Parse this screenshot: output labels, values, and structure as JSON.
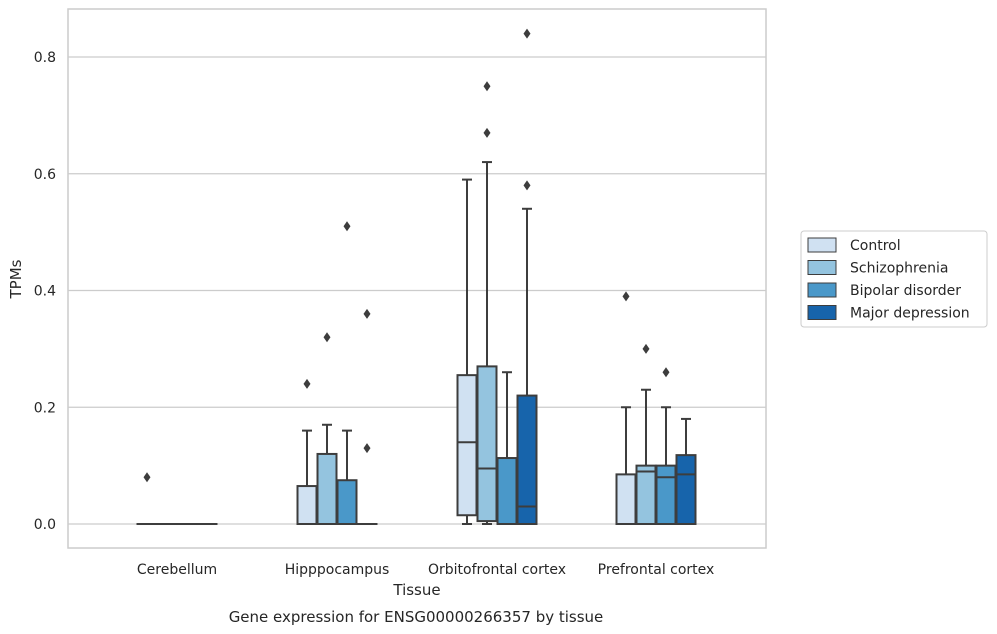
{
  "caption": "Gene expression for ENSG00000266357 by tissue",
  "chart_data": {
    "type": "box",
    "title": "",
    "xlabel": "Tissue",
    "ylabel": "TPMs",
    "ylim": [
      -0.04,
      0.885
    ],
    "yticks": [
      0.0,
      0.2,
      0.4,
      0.6,
      0.8
    ],
    "ytick_labels": [
      "0.0",
      "0.2",
      "0.4",
      "0.6",
      "0.8"
    ],
    "grid": "horizontal",
    "legend_position": "right",
    "categories": [
      "Cerebellum",
      "Hipppocampus",
      "Orbitofrontal cortex",
      "Prefrontal cortex"
    ],
    "series": [
      {
        "name": "Control",
        "color": "#d0e1f2",
        "boxes": [
          {
            "q1": 0,
            "median": 0,
            "q3": 0,
            "whisker_low": 0,
            "whisker_high": 0,
            "outliers": [
              0.08
            ]
          },
          {
            "q1": 0,
            "median": 0,
            "q3": 0.065,
            "whisker_low": 0,
            "whisker_high": 0.16,
            "outliers": [
              0.24
            ]
          },
          {
            "q1": 0.015,
            "median": 0.14,
            "q3": 0.255,
            "whisker_low": 0,
            "whisker_high": 0.59,
            "outliers": []
          },
          {
            "q1": 0,
            "median": 0,
            "q3": 0.085,
            "whisker_low": 0,
            "whisker_high": 0.2,
            "outliers": [
              0.39
            ]
          }
        ]
      },
      {
        "name": "Schizophrenia",
        "color": "#94c4df",
        "boxes": [
          {
            "q1": 0,
            "median": 0,
            "q3": 0,
            "whisker_low": 0,
            "whisker_high": 0,
            "outliers": []
          },
          {
            "q1": 0,
            "median": 0,
            "q3": 0.12,
            "whisker_low": 0,
            "whisker_high": 0.17,
            "outliers": [
              0.32
            ]
          },
          {
            "q1": 0.005,
            "median": 0.095,
            "q3": 0.27,
            "whisker_low": 0,
            "whisker_high": 0.62,
            "outliers": [
              0.67,
              0.75
            ]
          },
          {
            "q1": 0,
            "median": 0.09,
            "q3": 0.1,
            "whisker_low": 0,
            "whisker_high": 0.23,
            "outliers": [
              0.3
            ]
          }
        ]
      },
      {
        "name": "Bipolar disorder",
        "color": "#4a98c9",
        "boxes": [
          {
            "q1": 0,
            "median": 0,
            "q3": 0,
            "whisker_low": 0,
            "whisker_high": 0,
            "outliers": []
          },
          {
            "q1": 0,
            "median": 0,
            "q3": 0.075,
            "whisker_low": 0,
            "whisker_high": 0.16,
            "outliers": [
              0.51
            ]
          },
          {
            "q1": 0,
            "median": 0,
            "q3": 0.113,
            "whisker_low": 0,
            "whisker_high": 0.26,
            "outliers": []
          },
          {
            "q1": 0,
            "median": 0.08,
            "q3": 0.1,
            "whisker_low": 0,
            "whisker_high": 0.2,
            "outliers": [
              0.26
            ]
          }
        ]
      },
      {
        "name": "Major depression",
        "color": "#1764ab",
        "boxes": [
          {
            "q1": 0,
            "median": 0,
            "q3": 0,
            "whisker_low": 0,
            "whisker_high": 0,
            "outliers": []
          },
          {
            "q1": 0,
            "median": 0,
            "q3": 0,
            "whisker_low": 0,
            "whisker_high": 0,
            "outliers": [
              0.13,
              0.36
            ]
          },
          {
            "q1": 0,
            "median": 0.03,
            "q3": 0.22,
            "whisker_low": 0,
            "whisker_high": 0.54,
            "outliers": [
              0.58,
              0.84
            ]
          },
          {
            "q1": 0,
            "median": 0.085,
            "q3": 0.118,
            "whisker_low": 0,
            "whisker_high": 0.18,
            "outliers": []
          }
        ]
      }
    ]
  }
}
